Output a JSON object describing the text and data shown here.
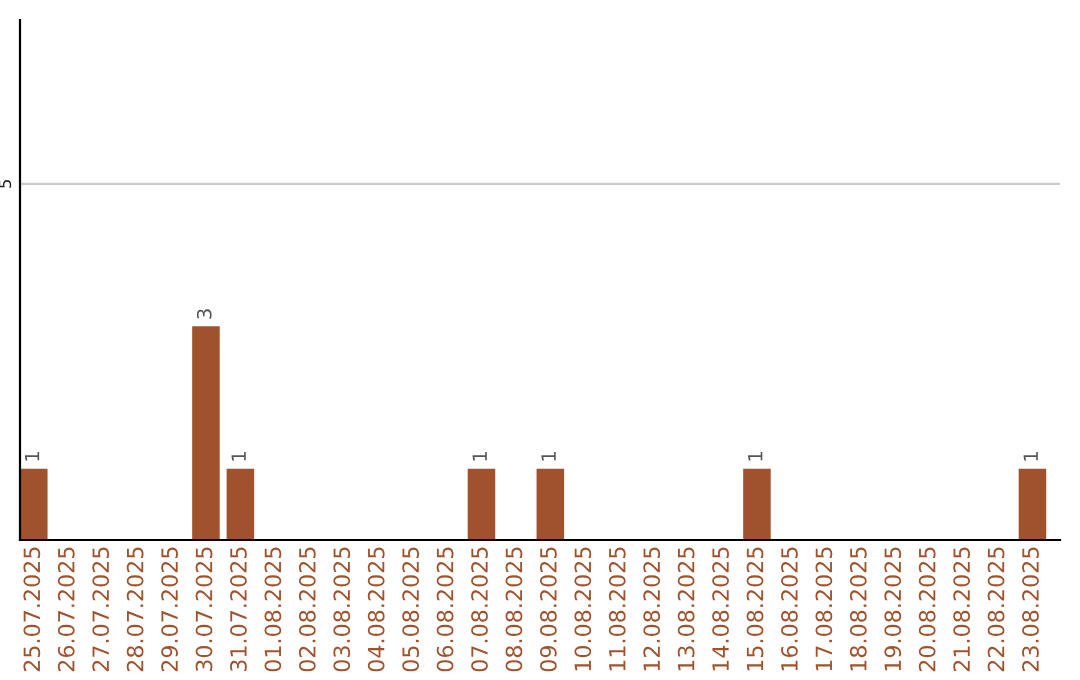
{
  "chart_data": {
    "type": "bar",
    "categories": [
      "25.07.2025",
      "26.07.2025",
      "27.07.2025",
      "28.07.2025",
      "29.07.2025",
      "30.07.2025",
      "31.07.2025",
      "01.08.2025",
      "02.08.2025",
      "03.08.2025",
      "04.08.2025",
      "05.08.2025",
      "06.08.2025",
      "07.08.2025",
      "08.08.2025",
      "09.08.2025",
      "10.08.2025",
      "11.08.2025",
      "12.08.2025",
      "13.08.2025",
      "14.08.2025",
      "15.08.2025",
      "16.08.2025",
      "17.08.2025",
      "18.08.2025",
      "19.08.2025",
      "20.08.2025",
      "21.08.2025",
      "22.08.2025",
      "23.08.2025"
    ],
    "values": [
      1,
      0,
      0,
      0,
      0,
      3,
      1,
      0,
      0,
      0,
      0,
      0,
      0,
      1,
      0,
      1,
      0,
      0,
      0,
      0,
      0,
      1,
      0,
      0,
      0,
      0,
      0,
      0,
      0,
      1
    ],
    "value_labels": [
      "1",
      null,
      null,
      null,
      null,
      "3",
      "1",
      null,
      null,
      null,
      null,
      null,
      null,
      "1",
      null,
      "1",
      null,
      null,
      null,
      null,
      null,
      "1",
      null,
      null,
      null,
      null,
      null,
      null,
      null,
      "1"
    ],
    "color": "#a0522d",
    "ylim": [
      0,
      7.3
    ],
    "yticks": [
      5
    ],
    "grid": "y",
    "legend": false
  }
}
